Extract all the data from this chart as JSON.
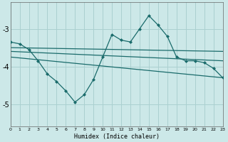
{
  "xlabel": "Humidex (Indice chaleur)",
  "bg_color": "#cce8e8",
  "grid_color": "#aad0d0",
  "line_color": "#1a6b6b",
  "x_ticks": [
    0,
    1,
    2,
    3,
    4,
    5,
    6,
    7,
    8,
    9,
    10,
    11,
    12,
    13,
    14,
    15,
    16,
    17,
    18,
    19,
    20,
    21,
    22,
    23
  ],
  "y_ticks": [
    -5,
    -4,
    -3
  ],
  "ylim": [
    -5.6,
    -2.3
  ],
  "xlim": [
    0,
    23
  ],
  "series_main": {
    "x": [
      0,
      1,
      2,
      3,
      4,
      5,
      6,
      7,
      8,
      9,
      10,
      11,
      12,
      13,
      14,
      15,
      16,
      17,
      18,
      19,
      20,
      21,
      22,
      23
    ],
    "y": [
      -3.35,
      -3.4,
      -3.55,
      -3.85,
      -4.2,
      -4.4,
      -4.65,
      -4.95,
      -4.75,
      -4.35,
      -3.75,
      -3.15,
      -3.3,
      -3.35,
      -3.0,
      -2.65,
      -2.9,
      -3.2,
      -3.75,
      -3.85,
      -3.85,
      -3.9,
      -4.05,
      -4.3
    ]
  },
  "series_line1": {
    "x": [
      0,
      23
    ],
    "y": [
      -3.5,
      -3.6
    ]
  },
  "series_line2": {
    "x": [
      0,
      23
    ],
    "y": [
      -3.6,
      -3.85
    ]
  },
  "series_line3": {
    "x": [
      0,
      23
    ],
    "y": [
      -3.75,
      -4.3
    ]
  }
}
